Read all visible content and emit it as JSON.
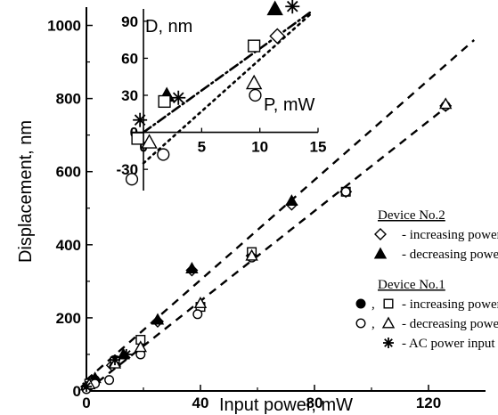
{
  "chart_data": [
    {
      "type": "scatter",
      "title": "",
      "xlabel": "Input power, mW",
      "ylabel": "Displacement, nm",
      "xlim": [
        0,
        140
      ],
      "ylim": [
        0,
        1050
      ],
      "x_ticks": [
        "0",
        "40",
        "80",
        "120"
      ],
      "y_ticks": [
        "0",
        "200",
        "400",
        "600",
        "800",
        "1000"
      ],
      "series": [
        {
          "marker": "open-diamond",
          "x": [
            0,
            3,
            9,
            25,
            37,
            58,
            72,
            91,
            126
          ],
          "y": [
            12,
            30,
            70,
            190,
            330,
            370,
            510,
            545,
            780
          ]
        },
        {
          "marker": "filled-triangle",
          "x": [
            0,
            3,
            10,
            13,
            25,
            37,
            72
          ],
          "y": [
            15,
            35,
            80,
            100,
            195,
            335,
            520
          ]
        },
        {
          "marker": "filled-circle",
          "x": [
            0,
            3,
            10
          ],
          "y": [
            10,
            30,
            85
          ]
        },
        {
          "marker": "open-square",
          "x": [
            1,
            10,
            19,
            40,
            58,
            91
          ],
          "y": [
            20,
            80,
            140,
            230,
            380,
            545
          ]
        },
        {
          "marker": "open-circle",
          "x": [
            0,
            3,
            8,
            19,
            39,
            58,
            91,
            126
          ],
          "y": [
            5,
            20,
            30,
            100,
            210,
            365,
            545,
            780
          ]
        },
        {
          "marker": "open-triangle",
          "x": [
            1,
            10,
            19,
            40,
            58,
            126
          ],
          "y": [
            18,
            75,
            120,
            240,
            370,
            785
          ]
        },
        {
          "marker": "asterisk",
          "x": [
            0,
            10,
            14
          ],
          "y": [
            12,
            85,
            100
          ]
        }
      ],
      "fit_lines": [
        {
          "style": "dashed",
          "x": [
            0,
            136
          ],
          "y": [
            30,
            960
          ]
        },
        {
          "style": "dashed",
          "x": [
            0,
            126
          ],
          "y": [
            0,
            775
          ]
        }
      ],
      "legend": {
        "groups": [
          {
            "heading": "Device No.2",
            "entries": [
              {
                "symbols": [
                  "open-diamond"
                ],
                "label": "- increasing power"
              },
              {
                "symbols": [
                  "filled-triangle"
                ],
                "label": "- decreasing power"
              }
            ]
          },
          {
            "heading": "Device No.1",
            "entries": [
              {
                "symbols": [
                  "filled-circle",
                  "open-square"
                ],
                "label": "- increasing power"
              },
              {
                "symbols": [
                  "open-circle",
                  "open-triangle"
                ],
                "label": "- decreasing power"
              },
              {
                "symbols": [
                  "asterisk"
                ],
                "label": "- AC power input"
              }
            ]
          }
        ],
        "separator": ","
      }
    },
    {
      "type": "scatter",
      "title": "",
      "xlabel": "P, mW",
      "ylabel": "D, nm",
      "xlim": [
        -1,
        15
      ],
      "ylim": [
        -40,
        100
      ],
      "x_ticks": [
        "0",
        "5",
        "10",
        "15"
      ],
      "y_ticks": [
        "-30",
        "0",
        "30",
        "60",
        "90"
      ],
      "series": [
        {
          "marker": "open-diamond",
          "x": [
            11.5
          ],
          "y": [
            78
          ]
        },
        {
          "marker": "filled-triangle",
          "x": [
            2,
            11.3
          ],
          "y": [
            30,
            100
          ]
        },
        {
          "marker": "open-square",
          "x": [
            -0.5,
            1.8,
            9.5
          ],
          "y": [
            -5,
            25,
            70
          ]
        },
        {
          "marker": "open-circle",
          "x": [
            -1,
            1.7,
            9.6
          ],
          "y": [
            -38,
            -18,
            30
          ]
        },
        {
          "marker": "open-triangle",
          "x": [
            0.5,
            9.5
          ],
          "y": [
            -8,
            40
          ]
        },
        {
          "marker": "asterisk",
          "x": [
            -0.3,
            3,
            12.8
          ],
          "y": [
            10,
            28,
            102
          ]
        }
      ],
      "fit_lines": [
        {
          "style": "dash-dot",
          "x": [
            0,
            14.3
          ],
          "y": [
            0,
            97
          ]
        },
        {
          "style": "dotted",
          "x": [
            0,
            14.5
          ],
          "y": [
            -25,
            97
          ]
        }
      ]
    }
  ]
}
